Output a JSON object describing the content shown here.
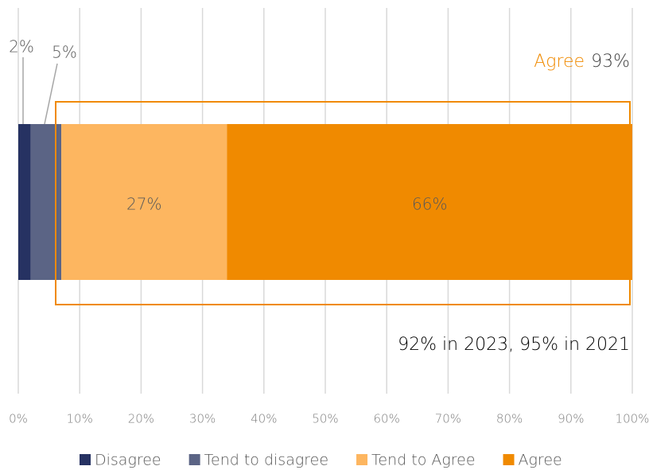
{
  "chart_data": {
    "type": "stacked_bar_horizontal",
    "series": [
      {
        "name": "Disagree",
        "color": "#263262",
        "values": [
          2
        ],
        "value_labels": [
          "2%"
        ]
      },
      {
        "name": "Tend to disagree",
        "color": "#5b6485",
        "values": [
          5
        ],
        "value_labels": [
          "5%"
        ]
      },
      {
        "name": "Tend to Agree",
        "color": "#fdb660",
        "values": [
          27
        ],
        "value_labels": [
          "27%"
        ]
      },
      {
        "name": "Agree",
        "color": "#f08a00",
        "values": [
          66
        ],
        "value_labels": [
          "66%"
        ]
      }
    ],
    "xlim": [
      0,
      100
    ],
    "xticks": [
      {
        "value": 0,
        "label": "0%"
      },
      {
        "value": 10,
        "label": "10%"
      },
      {
        "value": 20,
        "label": "20%"
      },
      {
        "value": 30,
        "label": "30%"
      },
      {
        "value": 40,
        "label": "40%"
      },
      {
        "value": 50,
        "label": "50%"
      },
      {
        "value": 60,
        "label": "60%"
      },
      {
        "value": 70,
        "label": "70%"
      },
      {
        "value": 80,
        "label": "80%"
      },
      {
        "value": 90,
        "label": "90%"
      },
      {
        "value": 100,
        "label": "100%"
      }
    ],
    "grid": true,
    "legend": "bottom",
    "agree_total": {
      "label": "Agree",
      "value": 93,
      "value_label": "93%"
    },
    "annotation": "92% in 2023, 95% in 2021"
  }
}
